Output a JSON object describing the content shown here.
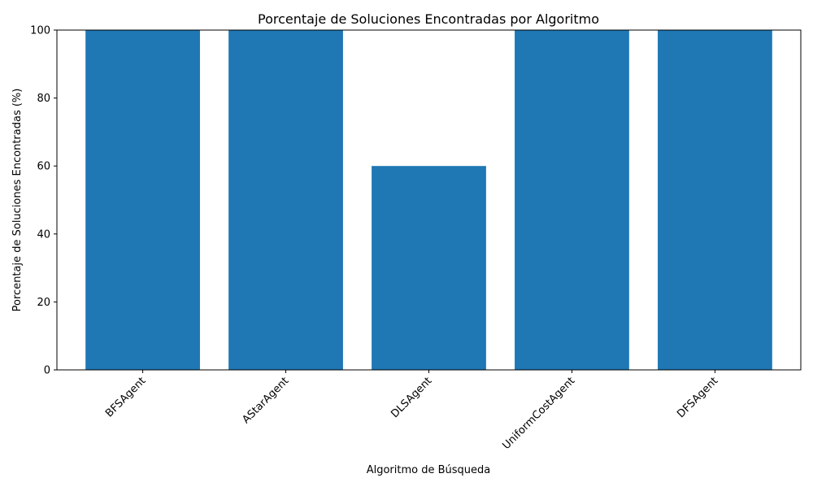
{
  "chart_data": {
    "type": "bar",
    "title": "Porcentaje de Soluciones Encontradas por Algoritmo",
    "xlabel": "Algoritmo de Búsqueda",
    "ylabel": "Porcentaje de Soluciones Encontradas (%)",
    "categories": [
      "BFSAgent",
      "AStarAgent",
      "DLSAgent",
      "UniformCostAgent",
      "DFSAgent"
    ],
    "values": [
      100,
      100,
      60,
      100,
      100
    ],
    "ylim": [
      0,
      100
    ],
    "yticks": [
      0,
      20,
      40,
      60,
      80,
      100
    ],
    "bar_color": "#1f77b4",
    "grid": false,
    "legend": "none"
  }
}
